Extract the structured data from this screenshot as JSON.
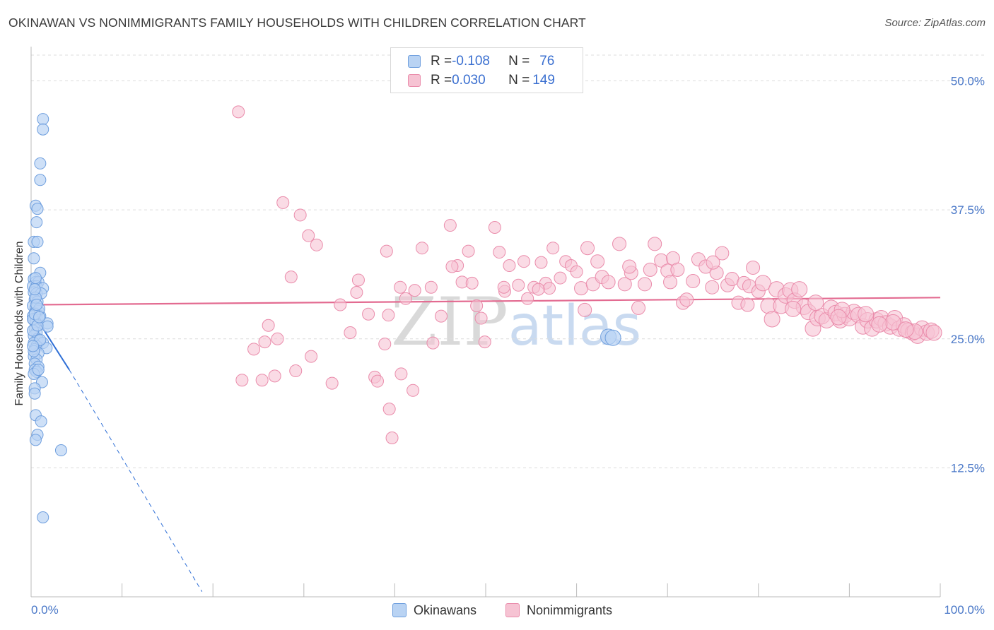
{
  "header": {
    "title": "OKINAWAN VS NONIMMIGRANTS FAMILY HOUSEHOLDS WITH CHILDREN CORRELATION CHART",
    "source": "Source: ZipAtlas.com"
  },
  "watermark": {
    "part1": "ZIP",
    "part2": "atlas"
  },
  "legend": {
    "rows": [
      {
        "r_label": "R = ",
        "r_value": "-0.108",
        "n_label": "N = ",
        "n_value": "76"
      },
      {
        "r_label": "R = ",
        "r_value": "0.030",
        "n_label": "N = ",
        "n_value": "149"
      }
    ]
  },
  "bottom_legend": {
    "item1": "Okinawans",
    "item2": "Nonimmigrants"
  },
  "colors": {
    "blue_fill": "#b9d3f3",
    "blue_stroke": "#6f9fde",
    "blue_line": "#2f6fd6",
    "pink_fill": "#f6c3d3",
    "pink_stroke": "#ea8cab",
    "pink_line": "#e36b91",
    "tick_color": "#4a78c8",
    "grid": "#dcdcdc"
  },
  "chart_data": {
    "type": "scatter",
    "title": "OKINAWAN VS NONIMMIGRANTS FAMILY HOUSEHOLDS WITH CHILDREN CORRELATION CHART",
    "xlabel": "",
    "ylabel": "Family Households with Children",
    "xlim": [
      0,
      100
    ],
    "ylim": [
      0,
      52.5
    ],
    "x_tick_labels": [
      "0.0%",
      "100.0%"
    ],
    "y_ticks": [
      12.5,
      25.0,
      37.5,
      50.0
    ],
    "y_tick_labels": [
      "12.5%",
      "25.0%",
      "37.5%",
      "50.0%"
    ],
    "grid": "horizontal dashed",
    "legend_position": "top-center",
    "series": [
      {
        "name": "Okinawans",
        "R": -0.108,
        "N": 76,
        "trend": {
          "x0": 0,
          "y0": 27.8,
          "x1": 4.2,
          "y1": 22.0,
          "dashed_to_x": 18.8,
          "dashed_to_y": 0.5
        },
        "points": [
          [
            1.3,
            46.3
          ],
          [
            1.3,
            45.3
          ],
          [
            1.0,
            42.0
          ],
          [
            1.0,
            40.4
          ],
          [
            0.5,
            37.9
          ],
          [
            0.7,
            37.6
          ],
          [
            0.6,
            36.3
          ],
          [
            0.3,
            34.4
          ],
          [
            0.7,
            34.4
          ],
          [
            0.3,
            32.8
          ],
          [
            1.0,
            31.4
          ],
          [
            0.3,
            30.8
          ],
          [
            0.5,
            30.5
          ],
          [
            0.8,
            30.5
          ],
          [
            0.2,
            30.1
          ],
          [
            0.6,
            30.1
          ],
          [
            1.3,
            29.9
          ],
          [
            0.3,
            29.5
          ],
          [
            0.6,
            29.4
          ],
          [
            1.1,
            29.4
          ],
          [
            0.4,
            28.8
          ],
          [
            0.7,
            28.6
          ],
          [
            0.2,
            28.2
          ],
          [
            0.5,
            28.0
          ],
          [
            0.8,
            27.7
          ],
          [
            0.4,
            27.5
          ],
          [
            0.2,
            27.2
          ],
          [
            0.6,
            27.0
          ],
          [
            1.0,
            27.2
          ],
          [
            0.3,
            26.8
          ],
          [
            0.5,
            26.6
          ],
          [
            1.8,
            26.5
          ],
          [
            1.8,
            26.2
          ],
          [
            0.4,
            26.0
          ],
          [
            0.6,
            25.6
          ],
          [
            0.3,
            25.3
          ],
          [
            0.7,
            25.0
          ],
          [
            0.9,
            24.8
          ],
          [
            0.3,
            24.6
          ],
          [
            1.3,
            24.6
          ],
          [
            0.6,
            24.3
          ],
          [
            0.4,
            24.0
          ],
          [
            1.7,
            24.1
          ],
          [
            0.8,
            23.6
          ],
          [
            0.3,
            23.3
          ],
          [
            0.6,
            23.0
          ],
          [
            0.4,
            22.6
          ],
          [
            0.8,
            22.3
          ],
          [
            0.4,
            22.0
          ],
          [
            0.6,
            21.8
          ],
          [
            0.3,
            21.6
          ],
          [
            1.2,
            20.8
          ],
          [
            0.4,
            20.2
          ],
          [
            0.4,
            19.7
          ],
          [
            0.5,
            17.6
          ],
          [
            1.1,
            17.0
          ],
          [
            0.7,
            15.7
          ],
          [
            0.5,
            15.2
          ],
          [
            3.3,
            14.2
          ],
          [
            1.3,
            7.7
          ],
          [
            0.2,
            26.9
          ],
          [
            0.9,
            27.9
          ],
          [
            0.2,
            25.8
          ],
          [
            0.5,
            29.0
          ],
          [
            0.7,
            26.3
          ],
          [
            0.3,
            23.8
          ],
          [
            1.0,
            24.9
          ],
          [
            0.4,
            27.4
          ],
          [
            0.6,
            28.3
          ],
          [
            0.8,
            22.0
          ],
          [
            0.2,
            24.3
          ],
          [
            0.5,
            30.9
          ],
          [
            63.5,
            25.2
          ],
          [
            64.0,
            25.1
          ],
          [
            0.4,
            29.8
          ],
          [
            0.9,
            27.1
          ]
        ]
      },
      {
        "name": "Nonimmigrants",
        "R": 0.03,
        "N": 149,
        "trend": {
          "x0": 0,
          "y0": 28.3,
          "x1": 100,
          "y1": 29.0
        },
        "points": [
          [
            22.8,
            47.0
          ],
          [
            27.7,
            38.2
          ],
          [
            29.6,
            37.0
          ],
          [
            30.5,
            35.0
          ],
          [
            31.4,
            34.1
          ],
          [
            28.6,
            31.0
          ],
          [
            26.1,
            26.3
          ],
          [
            27.1,
            25.0
          ],
          [
            25.7,
            24.7
          ],
          [
            24.5,
            24.0
          ],
          [
            23.2,
            21.0
          ],
          [
            25.4,
            21.0
          ],
          [
            26.8,
            21.4
          ],
          [
            29.1,
            21.9
          ],
          [
            30.8,
            23.3
          ],
          [
            33.1,
            20.7
          ],
          [
            35.1,
            25.6
          ],
          [
            34.0,
            28.3
          ],
          [
            35.8,
            29.5
          ],
          [
            36.0,
            30.7
          ],
          [
            37.1,
            27.4
          ],
          [
            39.3,
            27.3
          ],
          [
            38.9,
            24.5
          ],
          [
            37.8,
            21.3
          ],
          [
            38.1,
            20.9
          ],
          [
            39.4,
            18.2
          ],
          [
            39.7,
            15.4
          ],
          [
            40.7,
            21.6
          ],
          [
            42.0,
            20.0
          ],
          [
            41.2,
            28.9
          ],
          [
            40.6,
            30.0
          ],
          [
            39.1,
            33.5
          ],
          [
            43.0,
            33.8
          ],
          [
            42.2,
            29.7
          ],
          [
            44.0,
            30.0
          ],
          [
            45.1,
            27.2
          ],
          [
            44.2,
            24.6
          ],
          [
            46.1,
            36.0
          ],
          [
            46.9,
            32.1
          ],
          [
            46.3,
            32.0
          ],
          [
            47.4,
            30.5
          ],
          [
            48.1,
            33.5
          ],
          [
            48.5,
            30.4
          ],
          [
            49.0,
            28.2
          ],
          [
            49.5,
            27.0
          ],
          [
            49.9,
            24.7
          ],
          [
            51.0,
            35.8
          ],
          [
            51.5,
            33.4
          ],
          [
            52.1,
            29.6
          ],
          [
            52.6,
            32.1
          ],
          [
            53.6,
            30.2
          ],
          [
            54.2,
            32.5
          ],
          [
            54.6,
            28.9
          ],
          [
            55.3,
            30.0
          ],
          [
            56.1,
            32.4
          ],
          [
            56.6,
            30.4
          ],
          [
            57.0,
            29.9
          ],
          [
            57.4,
            33.8
          ],
          [
            58.2,
            30.9
          ],
          [
            58.8,
            32.5
          ],
          [
            59.4,
            32.1
          ],
          [
            60.0,
            31.5
          ],
          [
            60.5,
            29.9
          ],
          [
            61.2,
            33.8
          ],
          [
            61.8,
            30.3
          ],
          [
            62.3,
            32.5
          ],
          [
            62.8,
            31.0
          ],
          [
            63.5,
            30.5
          ],
          [
            64.7,
            34.2
          ],
          [
            65.3,
            30.3
          ],
          [
            66.0,
            31.4
          ],
          [
            66.8,
            28.0
          ],
          [
            67.5,
            30.3
          ],
          [
            68.1,
            31.7
          ],
          [
            68.6,
            34.2
          ],
          [
            69.3,
            32.6
          ],
          [
            70.0,
            31.6
          ],
          [
            70.6,
            32.8
          ],
          [
            71.1,
            31.7
          ],
          [
            71.7,
            28.5
          ],
          [
            72.1,
            28.8
          ],
          [
            72.8,
            30.6
          ],
          [
            73.4,
            32.7
          ],
          [
            74.2,
            32.0
          ],
          [
            74.9,
            30.0
          ],
          [
            75.4,
            31.4
          ],
          [
            76.0,
            33.3
          ],
          [
            76.6,
            30.2
          ],
          [
            77.1,
            30.8
          ],
          [
            77.8,
            28.5
          ],
          [
            78.4,
            30.4
          ],
          [
            79.0,
            30.1
          ],
          [
            79.4,
            31.9
          ],
          [
            80.0,
            29.6
          ],
          [
            80.5,
            30.4
          ],
          [
            81.1,
            28.2
          ],
          [
            81.5,
            26.9
          ],
          [
            82.0,
            29.8
          ],
          [
            82.5,
            28.2
          ],
          [
            83.0,
            29.2
          ],
          [
            83.5,
            29.7
          ],
          [
            84.0,
            28.7
          ],
          [
            84.5,
            29.8
          ],
          [
            85.0,
            28.1
          ],
          [
            85.5,
            27.6
          ],
          [
            86.0,
            26.0
          ],
          [
            86.5,
            27.0
          ],
          [
            87.0,
            27.2
          ],
          [
            87.5,
            26.8
          ],
          [
            88.0,
            28.0
          ],
          [
            88.5,
            27.5
          ],
          [
            89.0,
            26.8
          ],
          [
            89.5,
            27.3
          ],
          [
            90.0,
            27.0
          ],
          [
            90.5,
            27.6
          ],
          [
            91.0,
            27.3
          ],
          [
            91.5,
            26.2
          ],
          [
            92.0,
            26.8
          ],
          [
            92.5,
            26.0
          ],
          [
            93.0,
            26.8
          ],
          [
            93.5,
            27.0
          ],
          [
            94.0,
            26.5
          ],
          [
            94.5,
            26.2
          ],
          [
            95.0,
            27.0
          ],
          [
            95.5,
            26.0
          ],
          [
            96.0,
            26.3
          ],
          [
            96.5,
            25.8
          ],
          [
            97.0,
            25.6
          ],
          [
            97.5,
            25.3
          ],
          [
            98.0,
            26.0
          ],
          [
            98.5,
            25.6
          ],
          [
            99.0,
            25.8
          ],
          [
            52.0,
            30.0
          ],
          [
            55.8,
            29.8
          ],
          [
            60.9,
            27.8
          ],
          [
            65.8,
            32.0
          ],
          [
            70.3,
            30.5
          ],
          [
            75.0,
            32.4
          ],
          [
            78.8,
            28.3
          ],
          [
            83.8,
            27.9
          ],
          [
            86.3,
            28.5
          ],
          [
            89.2,
            27.8
          ],
          [
            91.8,
            27.4
          ],
          [
            94.8,
            26.6
          ],
          [
            97.2,
            25.7
          ],
          [
            88.8,
            27.1
          ],
          [
            93.3,
            26.4
          ],
          [
            96.2,
            25.9
          ],
          [
            99.3,
            25.6
          ]
        ]
      }
    ]
  }
}
